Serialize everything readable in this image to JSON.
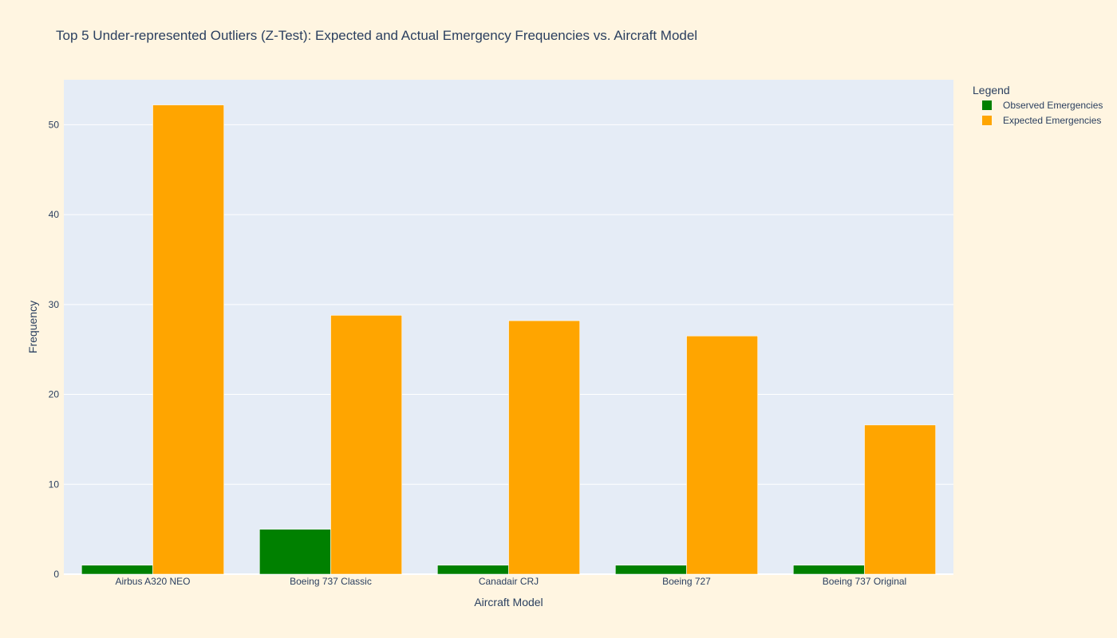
{
  "chart_data": {
    "type": "bar",
    "title": "Top 5 Under-represented Outliers (Z-Test): Expected and Actual Emergency Frequencies vs. Aircraft Model",
    "xlabel": "Aircraft Model",
    "ylabel": "Frequency",
    "ylim": [
      0,
      55
    ],
    "yticks": [
      0,
      10,
      20,
      30,
      40,
      50
    ],
    "grid": true,
    "legend_title": "Legend",
    "legend_position": "right",
    "categories": [
      "Airbus A320 NEO",
      "Boeing 737 Classic",
      "Canadair CRJ",
      "Boeing 727",
      "Boeing 737 Original"
    ],
    "series": [
      {
        "name": "Observed Emergencies",
        "color": "#008000",
        "values": [
          1,
          5,
          1,
          1,
          1
        ]
      },
      {
        "name": "Expected Emergencies",
        "color": "#ffa500",
        "values": [
          52.2,
          28.8,
          28.2,
          26.5,
          16.6
        ]
      }
    ],
    "colors": {
      "plot_background": "#e5ecf6",
      "paper_background": "#fff5e1",
      "grid": "#ffffff"
    }
  }
}
